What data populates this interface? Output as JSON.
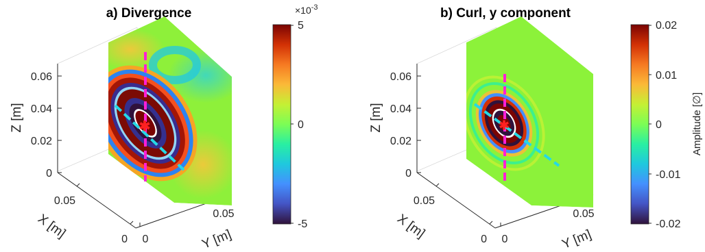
{
  "chart_data": [
    {
      "type": "heatmap",
      "title": "a) Divergence",
      "xlabel": "X [m]",
      "ylabel": "Y [m]",
      "zlabel": "Z [m]",
      "x_ticks": [
        "0",
        "0.05"
      ],
      "y_ticks": [
        "0",
        "0.05"
      ],
      "z_ticks": [
        "0",
        "0.02",
        "0.04",
        "0.06"
      ],
      "colorbar": {
        "ticks": [
          "-5",
          "0",
          "5"
        ],
        "min": -0.005,
        "max": 0.005,
        "exponent_prefix": "×10",
        "exponent_power": "-3",
        "label": "",
        "colormap": "turbo"
      }
    },
    {
      "type": "heatmap",
      "title": "b) Curl, y component",
      "xlabel": "X [m]",
      "ylabel": "Y [m]",
      "zlabel": "Z [m]",
      "x_ticks": [
        "0",
        "0.05"
      ],
      "y_ticks": [
        "0",
        "0.05"
      ],
      "z_ticks": [
        "0",
        "0.02",
        "0.04",
        "0.06"
      ],
      "colorbar": {
        "ticks": [
          "-0.02",
          "-0.01",
          "0",
          "0.01",
          "0.02"
        ],
        "min": -0.02,
        "max": 0.02,
        "label": "Amplitude [∅]",
        "colormap": "turbo"
      }
    }
  ],
  "colors": {
    "background_field": "#8cf23a",
    "dashed_vertical": "#ff1fd6",
    "dashed_diagonal": "#25d9e6",
    "source_marker": "#ff2020"
  }
}
